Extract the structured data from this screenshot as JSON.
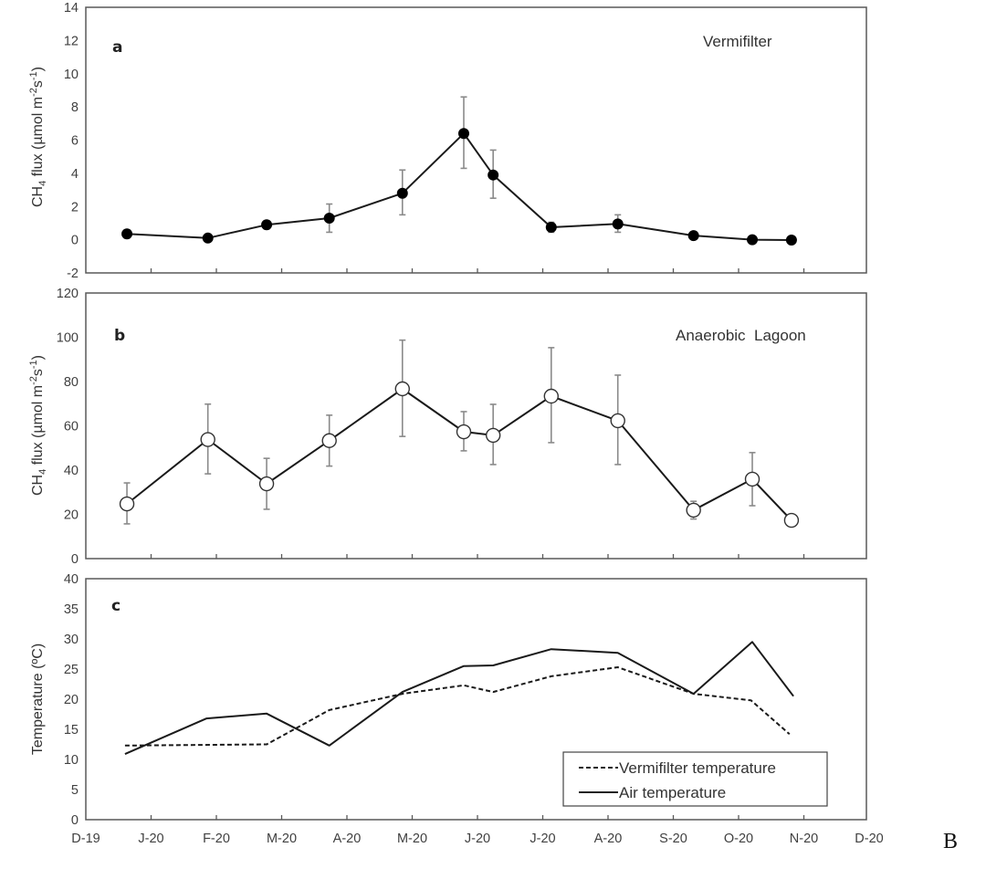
{
  "chart_data": [
    {
      "type": "line",
      "panel_letter": "a",
      "title": "Vermifilter",
      "ylabel_main": "CH",
      "ylabel_sub": "4",
      "ylabel_rest": " flux (µmol m",
      "ylabel_sup1": "-2",
      "ylabel_mid": "s",
      "ylabel_sup2": "-1",
      "ylabel_end": ")",
      "ylim": [
        -2,
        14
      ],
      "yticks": [
        -2,
        0,
        2,
        4,
        6,
        8,
        10,
        12,
        14
      ],
      "marker": "filled-circle",
      "x_unit": "months since Dec 2019",
      "series": [
        {
          "name": "Vermifilter CH4 flux",
          "x": [
            0.63,
            1.87,
            2.77,
            3.73,
            4.85,
            5.79,
            6.24,
            7.13,
            8.15,
            9.31,
            10.21,
            10.81
          ],
          "y": [
            0.35,
            0.1,
            0.9,
            1.3,
            2.8,
            6.4,
            3.9,
            0.75,
            0.95,
            0.25,
            0.0,
            -0.02
          ],
          "err_low": [
            0.25,
            0.05,
            0.25,
            0.85,
            1.3,
            2.1,
            1.4,
            0.3,
            0.5,
            0.1,
            0.05,
            0.05
          ],
          "err_high": [
            0.25,
            0.05,
            0.25,
            0.85,
            1.4,
            2.2,
            1.5,
            0.3,
            0.55,
            0.1,
            0.05,
            0.05
          ]
        }
      ]
    },
    {
      "type": "line",
      "panel_letter": "b",
      "title": "Anaerobic  Lagoon",
      "ylabel_main": "CH",
      "ylabel_sub": "4",
      "ylabel_rest": " flux (µmol m",
      "ylabel_sup1": "-2",
      "ylabel_mid": "s",
      "ylabel_sup2": "-1",
      "ylabel_end": ")",
      "ylim": [
        0,
        120
      ],
      "yticks": [
        0,
        20,
        40,
        60,
        80,
        100,
        120
      ],
      "marker": "open-circle",
      "x_unit": "months since Dec 2019",
      "series": [
        {
          "name": "Anaerobic Lagoon CH4 flux",
          "x": [
            0.63,
            1.87,
            2.77,
            3.73,
            4.85,
            5.79,
            6.24,
            7.13,
            8.15,
            9.31,
            10.21,
            10.81
          ],
          "y": [
            24.7,
            53.8,
            33.8,
            53.3,
            76.7,
            57.3,
            55.7,
            73.4,
            62.3,
            21.9,
            35.9,
            17.3
          ],
          "err_low": [
            9,
            15.5,
            11.5,
            11.5,
            21.5,
            8.6,
            13.2,
            21.0,
            19.8,
            4,
            12,
            0
          ],
          "err_high": [
            9.5,
            16,
            11.5,
            11.5,
            22,
            9.1,
            14,
            21.9,
            20.6,
            4,
            12,
            0
          ]
        }
      ]
    },
    {
      "type": "line",
      "panel_letter": "c",
      "title": "",
      "ylabel": "Temperature (ºC)",
      "ylim": [
        0,
        40
      ],
      "yticks": [
        0,
        5,
        10,
        15,
        20,
        25,
        30,
        35,
        40
      ],
      "x_unit": "months since Dec 2019",
      "xlim": [
        0,
        12
      ],
      "xtick_labels": [
        "D-19",
        "J-20",
        "F-20",
        "M-20",
        "A-20",
        "M-20",
        "J-20",
        "J-20",
        "A-20",
        "S-20",
        "O-20",
        "N-20",
        "D-20"
      ],
      "legend": {
        "placement": "bottom-right",
        "entries": [
          "Vermifilter temperature",
          "Air temperature"
        ]
      },
      "series": [
        {
          "name": "Vermifilter temperature",
          "style": "dashed",
          "x": [
            0.6,
            2.77,
            3.73,
            4.85,
            5.79,
            6.24,
            7.13,
            8.15,
            9.31,
            10.19,
            10.78
          ],
          "y": [
            12.3,
            12.5,
            18.2,
            20.9,
            22.3,
            21.2,
            23.8,
            25.3,
            20.9,
            19.8,
            14.2
          ]
        },
        {
          "name": "Air temperature",
          "style": "solid",
          "x": [
            0.6,
            1.85,
            2.77,
            3.73,
            4.85,
            5.79,
            6.24,
            7.13,
            8.15,
            9.31,
            10.21,
            10.84
          ],
          "y": [
            10.9,
            16.8,
            17.6,
            12.3,
            21.2,
            25.5,
            25.6,
            28.3,
            27.7,
            20.9,
            29.5,
            20.5
          ]
        }
      ]
    }
  ],
  "figure_tag": "B"
}
